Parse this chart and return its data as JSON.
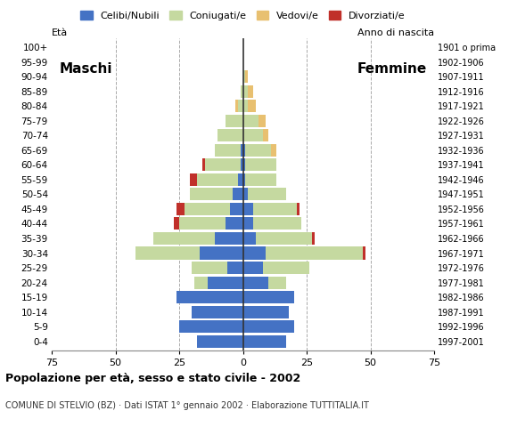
{
  "age_groups": [
    "0-4",
    "5-9",
    "10-14",
    "15-19",
    "20-24",
    "25-29",
    "30-34",
    "35-39",
    "40-44",
    "45-49",
    "50-54",
    "55-59",
    "60-64",
    "65-69",
    "70-74",
    "75-79",
    "80-84",
    "85-89",
    "90-94",
    "95-99",
    "100+"
  ],
  "birth_years": [
    "1997-2001",
    "1992-1996",
    "1987-1991",
    "1982-1986",
    "1977-1981",
    "1972-1976",
    "1967-1971",
    "1962-1966",
    "1957-1961",
    "1952-1956",
    "1947-1951",
    "1942-1946",
    "1937-1941",
    "1932-1936",
    "1927-1931",
    "1922-1926",
    "1917-1921",
    "1912-1916",
    "1907-1911",
    "1902-1906",
    "1901 o prima"
  ],
  "males": {
    "celibe": [
      18,
      25,
      20,
      26,
      14,
      6,
      17,
      11,
      7,
      5,
      4,
      2,
      1,
      1,
      0,
      0,
      0,
      0,
      0,
      0,
      0
    ],
    "coniugato": [
      0,
      0,
      0,
      0,
      5,
      14,
      25,
      24,
      18,
      18,
      17,
      16,
      14,
      10,
      10,
      7,
      2,
      1,
      0,
      0,
      0
    ],
    "vedovo": [
      0,
      0,
      0,
      0,
      0,
      0,
      0,
      0,
      0,
      0,
      0,
      0,
      0,
      0,
      0,
      0,
      1,
      0,
      0,
      0,
      0
    ],
    "divorziato": [
      0,
      0,
      0,
      0,
      0,
      0,
      0,
      0,
      2,
      3,
      0,
      3,
      1,
      0,
      0,
      0,
      0,
      0,
      0,
      0,
      0
    ]
  },
  "females": {
    "nubile": [
      17,
      20,
      18,
      20,
      10,
      8,
      9,
      5,
      4,
      4,
      2,
      1,
      1,
      1,
      0,
      0,
      0,
      0,
      0,
      0,
      0
    ],
    "coniugata": [
      0,
      0,
      0,
      0,
      7,
      18,
      38,
      22,
      19,
      17,
      15,
      12,
      12,
      10,
      8,
      6,
      2,
      2,
      1,
      0,
      0
    ],
    "vedova": [
      0,
      0,
      0,
      0,
      0,
      0,
      0,
      0,
      0,
      0,
      0,
      0,
      0,
      2,
      2,
      3,
      3,
      2,
      1,
      0,
      0
    ],
    "divorziata": [
      0,
      0,
      0,
      0,
      0,
      0,
      1,
      1,
      0,
      1,
      0,
      0,
      0,
      0,
      0,
      0,
      0,
      0,
      0,
      0,
      0
    ]
  },
  "colors": {
    "celibe_nubile": "#4472C4",
    "coniugato_a": "#C5D9A0",
    "vedovo_a": "#E8C070",
    "divorziato_a": "#C0302A"
  },
  "xlim": 75,
  "title": "Popolazione per età, sesso e stato civile - 2002",
  "subtitle": "COMUNE DI STELVIO (BZ) · Dati ISTAT 1° gennaio 2002 · Elaborazione TUTTITALIA.IT",
  "legend_labels": [
    "Celibi/Nubili",
    "Coniugati/e",
    "Vedovi/e",
    "Divorziati/e"
  ],
  "background_color": "#ffffff"
}
